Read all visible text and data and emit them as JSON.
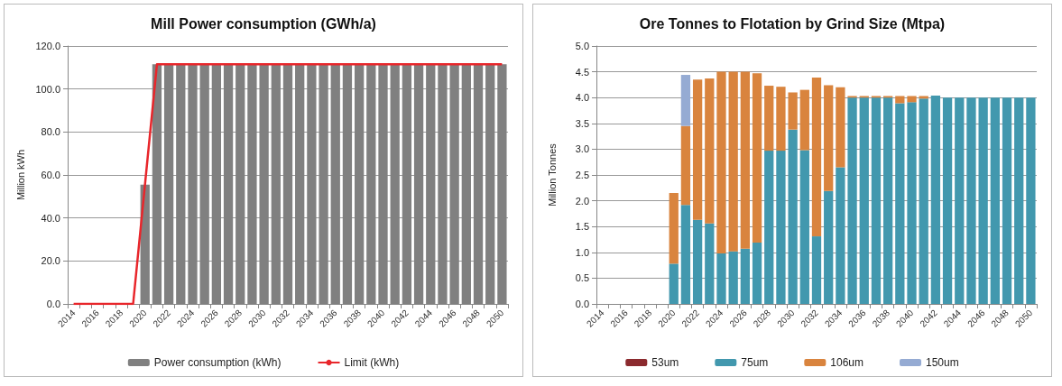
{
  "chart_data": [
    {
      "type": "bar",
      "title": "Mill Power consumption (GWh/a)",
      "ylabel": "Million kWh",
      "categories": [
        "2014",
        null,
        "2016",
        null,
        "2018",
        null,
        "2020",
        null,
        "2022",
        null,
        "2024",
        null,
        "2026",
        null,
        "2028",
        null,
        "2030",
        null,
        "2032",
        null,
        "2034",
        null,
        "2036",
        null,
        "2038",
        null,
        "2040",
        null,
        "2042",
        null,
        "2044",
        null,
        "2046",
        null,
        "2048",
        null,
        "2050"
      ],
      "series": [
        {
          "name": "Power consumption (kWh)",
          "type": "bar",
          "color": "#808080",
          "values": [
            0,
            0,
            0,
            0,
            0,
            0,
            55.5,
            111.5,
            111.5,
            111.5,
            111.5,
            111.5,
            111.5,
            111.5,
            111.5,
            111.5,
            111.5,
            111.5,
            111.5,
            111.5,
            111.5,
            111.5,
            111.5,
            111.5,
            111.5,
            111.5,
            111.5,
            111.5,
            111.5,
            111.5,
            111.5,
            111.5,
            111.5,
            111.5,
            111.5,
            111.5,
            111.5
          ]
        },
        {
          "name": "Limit (kWh)",
          "type": "line",
          "color": "#e8262b",
          "values": [
            0,
            0,
            0,
            0,
            0,
            0,
            55.7,
            111.5,
            111.5,
            111.5,
            111.5,
            111.5,
            111.5,
            111.5,
            111.5,
            111.5,
            111.5,
            111.5,
            111.5,
            111.5,
            111.5,
            111.5,
            111.5,
            111.5,
            111.5,
            111.5,
            111.5,
            111.5,
            111.5,
            111.5,
            111.5,
            111.5,
            111.5,
            111.5,
            111.5,
            111.5,
            111.5
          ]
        }
      ],
      "ylim": [
        0,
        120
      ],
      "yticks": [
        {
          "value": 0,
          "label": "0.0"
        },
        {
          "value": 20,
          "label": "20.0"
        },
        {
          "value": 40,
          "label": "40.0"
        },
        {
          "value": 60,
          "label": "60.0"
        },
        {
          "value": 80,
          "label": "80.0"
        },
        {
          "value": 100,
          "label": "100.0"
        },
        {
          "value": 120,
          "label": "120.0"
        }
      ],
      "grid": "y",
      "legend": "bottom",
      "marker": "none"
    },
    {
      "type": "bar",
      "title": "Ore Tonnes to Flotation by Grind Size (Mtpa)",
      "ylabel": "Million Tonnes",
      "stacked": true,
      "categories": [
        "2014",
        null,
        "2016",
        null,
        "2018",
        null,
        "2020",
        null,
        "2022",
        null,
        "2024",
        null,
        "2026",
        null,
        "2028",
        null,
        "2030",
        null,
        "2032",
        null,
        "2034",
        null,
        "2036",
        null,
        "2038",
        null,
        "2040",
        null,
        "2042",
        null,
        "2044",
        null,
        "2046",
        null,
        "2048",
        null,
        "2050"
      ],
      "series": [
        {
          "name": "53um",
          "color": "#8b2a2e",
          "values": [
            0,
            0,
            0,
            0,
            0,
            0,
            0,
            0,
            0,
            0,
            0,
            0,
            0,
            0,
            0,
            0,
            0,
            0,
            0,
            0,
            0,
            0,
            0,
            0,
            0,
            0,
            0,
            0,
            0,
            0,
            0,
            0,
            0,
            0,
            0,
            0,
            0
          ]
        },
        {
          "name": "75um",
          "color": "#4298ae",
          "values": [
            0,
            0,
            0,
            0,
            0,
            0,
            0.78,
            1.92,
            1.63,
            1.56,
            0.98,
            1.02,
            1.07,
            1.19,
            2.97,
            2.97,
            3.38,
            2.98,
            1.31,
            2.19,
            2.65,
            4.0,
            4.0,
            4.0,
            4.0,
            3.89,
            3.91,
            3.98,
            4.04,
            4.0,
            4.0,
            4.0,
            4.0,
            4.0,
            4.0,
            4.0,
            4.0
          ]
        },
        {
          "name": "106um",
          "color": "#d9843e",
          "values": [
            0,
            0,
            0,
            0,
            0,
            0,
            1.37,
            1.53,
            2.72,
            2.81,
            3.52,
            3.48,
            3.43,
            3.28,
            1.26,
            1.24,
            0.72,
            1.17,
            3.08,
            2.05,
            1.55,
            0.03,
            0.03,
            0.03,
            0.03,
            0.14,
            0.12,
            0.05,
            0,
            0,
            0,
            0,
            0,
            0,
            0,
            0,
            0
          ]
        },
        {
          "name": "150um",
          "color": "#95abd3",
          "values": [
            0,
            0,
            0,
            0,
            0,
            0,
            0,
            0.99,
            0,
            0,
            0,
            0,
            0,
            0,
            0,
            0,
            0,
            0,
            0,
            0,
            0,
            0,
            0,
            0,
            0,
            0,
            0,
            0,
            0,
            0,
            0,
            0,
            0,
            0,
            0,
            0,
            0
          ]
        }
      ],
      "ylim": [
        0,
        5
      ],
      "yticks": [
        {
          "value": 0,
          "label": "0.0"
        },
        {
          "value": 0.5,
          "label": "0.5"
        },
        {
          "value": 1,
          "label": "1.0"
        },
        {
          "value": 1.5,
          "label": "1.5"
        },
        {
          "value": 2,
          "label": "2.0"
        },
        {
          "value": 2.5,
          "label": "2.5"
        },
        {
          "value": 3,
          "label": "3.0"
        },
        {
          "value": 3.5,
          "label": "3.5"
        },
        {
          "value": 4,
          "label": "4.0"
        },
        {
          "value": 4.5,
          "label": "4.5"
        },
        {
          "value": 5,
          "label": "5.0"
        }
      ],
      "grid": "y",
      "legend": "bottom"
    }
  ]
}
